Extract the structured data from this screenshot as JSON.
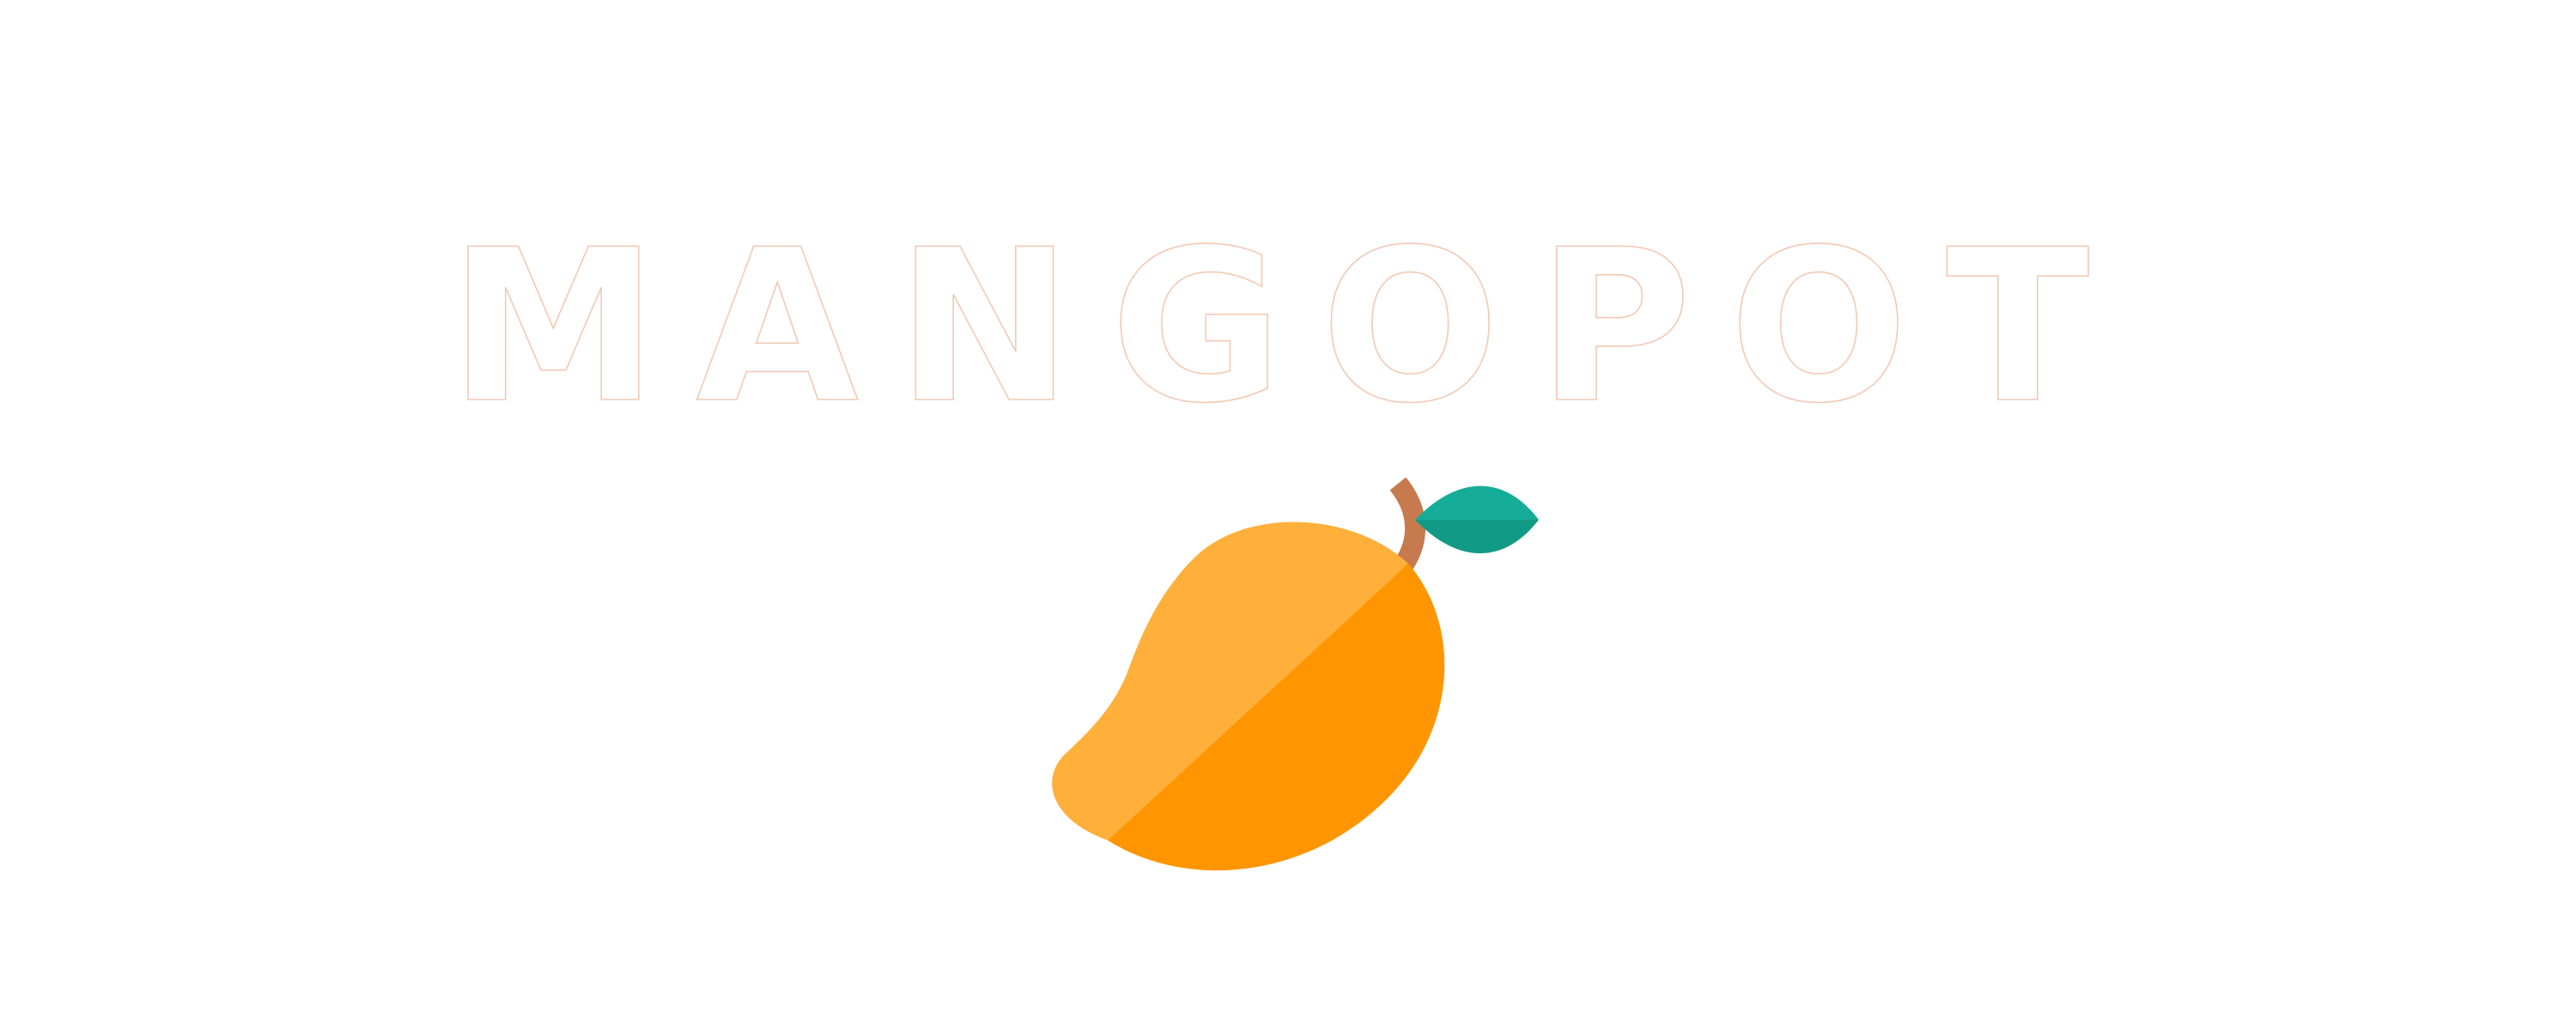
{
  "brand": {
    "name": "MANGOPOT"
  },
  "colors": {
    "background": "#ffffff",
    "text_fill": "#ffffff",
    "text_outline": "#f2c9b4",
    "mango_light": "#ffb03b",
    "mango_dark": "#ff9500",
    "stem": "#c67a4e",
    "leaf_light": "#16ad98",
    "leaf_dark": "#119a86"
  },
  "icons": {
    "logo_mark": "mango-icon"
  }
}
